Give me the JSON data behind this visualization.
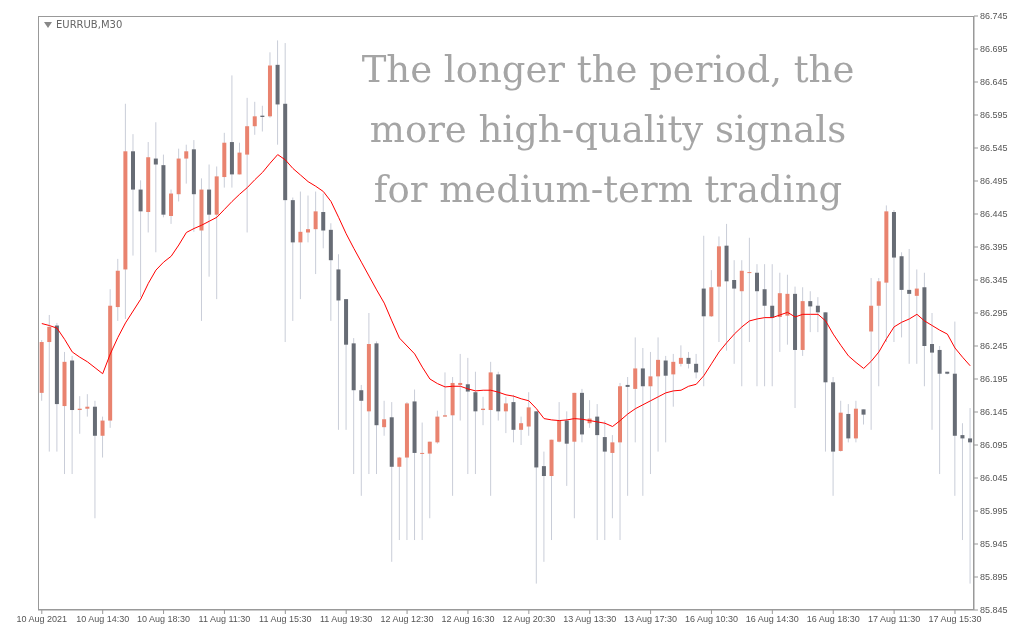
{
  "chart_data": {
    "type": "candlestick",
    "title": "EURRUB,M30",
    "annotations": [
      "The longer the period, the\nmore high-quality signals\nfor medium-term trading"
    ],
    "categories": [
      "10 Aug 2021",
      null,
      null,
      null,
      null,
      null,
      null,
      null,
      "10 Aug 14:30",
      null,
      null,
      null,
      null,
      null,
      null,
      null,
      "10 Aug 18:30",
      null,
      null,
      null,
      null,
      null,
      null,
      null,
      "11 Aug 11:30",
      null,
      null,
      null,
      null,
      null,
      null,
      null,
      "11 Aug 15:30",
      null,
      null,
      null,
      null,
      null,
      null,
      null,
      "11 Aug 19:30",
      null,
      null,
      null,
      null,
      null,
      null,
      null,
      "12 Aug 12:30",
      null,
      null,
      null,
      null,
      null,
      null,
      null,
      "12 Aug 16:30",
      null,
      null,
      null,
      null,
      null,
      null,
      null,
      "12 Aug 20:30",
      null,
      null,
      null,
      null,
      null,
      null,
      null,
      "13 Aug 13:30",
      null,
      null,
      null,
      null,
      null,
      null,
      null,
      "13 Aug 17:30",
      null,
      null,
      null,
      null,
      null,
      null,
      null,
      "16 Aug 10:30",
      null,
      null,
      null,
      null,
      null,
      null,
      null,
      "16 Aug 14:30",
      null,
      null,
      null,
      null,
      null,
      null,
      null,
      "16 Aug 18:30",
      null,
      null,
      null,
      null,
      null,
      null,
      null,
      "17 Aug 11:30",
      null,
      null,
      null,
      null,
      null,
      null,
      null,
      "17 Aug 15:30",
      null,
      null
    ],
    "ohlc": [
      [
        86.174,
        86.254,
        86.162,
        86.251
      ],
      [
        86.251,
        86.292,
        86.085,
        86.274
      ],
      [
        86.276,
        86.28,
        86.085,
        86.157
      ],
      [
        86.154,
        86.236,
        86.051,
        86.221
      ],
      [
        86.223,
        86.23,
        86.051,
        86.148
      ],
      [
        86.148,
        86.169,
        86.112,
        86.15
      ],
      [
        86.15,
        86.172,
        86.138,
        86.153
      ],
      [
        86.153,
        86.162,
        85.984,
        86.109
      ],
      [
        86.109,
        86.138,
        86.076,
        86.132
      ],
      [
        86.132,
        86.331,
        86.121,
        86.306
      ],
      [
        86.304,
        86.377,
        86.283,
        86.359
      ],
      [
        86.361,
        86.612,
        86.286,
        86.54
      ],
      [
        86.54,
        86.566,
        86.382,
        86.482
      ],
      [
        86.482,
        86.496,
        86.319,
        86.449
      ],
      [
        86.448,
        86.554,
        86.417,
        86.531
      ],
      [
        86.529,
        86.584,
        86.387,
        86.52
      ],
      [
        86.519,
        86.535,
        86.44,
        86.444
      ],
      [
        86.442,
        86.482,
        86.43,
        86.476
      ],
      [
        86.475,
        86.544,
        86.464,
        86.529
      ],
      [
        86.529,
        86.55,
        86.491,
        86.54
      ],
      [
        86.543,
        86.557,
        86.418,
        86.475
      ],
      [
        86.42,
        86.499,
        86.283,
        86.482
      ],
      [
        86.482,
        86.52,
        86.35,
        86.444
      ],
      [
        86.444,
        86.517,
        86.316,
        86.502
      ],
      [
        86.501,
        86.568,
        86.485,
        86.553
      ],
      [
        86.554,
        86.655,
        86.485,
        86.505
      ],
      [
        86.505,
        86.553,
        86.505,
        86.538
      ],
      [
        86.535,
        86.621,
        86.417,
        86.578
      ],
      [
        86.578,
        86.615,
        86.565,
        86.593
      ],
      [
        86.594,
        86.609,
        86.57,
        86.592
      ],
      [
        86.593,
        86.69,
        86.591,
        86.67
      ],
      [
        86.671,
        86.708,
        86.55,
        86.611
      ],
      [
        86.612,
        86.704,
        86.251,
        86.466
      ],
      [
        86.466,
        86.47,
        86.283,
        86.402
      ],
      [
        86.402,
        86.479,
        86.316,
        86.418
      ],
      [
        86.417,
        86.473,
        86.402,
        86.422
      ],
      [
        86.422,
        86.479,
        86.354,
        86.449
      ],
      [
        86.448,
        86.476,
        86.393,
        86.42
      ],
      [
        86.421,
        86.431,
        86.283,
        86.375
      ],
      [
        86.361,
        86.384,
        86.118,
        86.314
      ],
      [
        86.316,
        86.316,
        86.118,
        86.247
      ],
      [
        86.249,
        86.257,
        86.051,
        86.178
      ],
      [
        86.178,
        86.186,
        86.018,
        86.162
      ],
      [
        86.146,
        86.295,
        86.051,
        86.248
      ],
      [
        86.249,
        86.252,
        86.051,
        86.125
      ],
      [
        86.122,
        86.162,
        86.109,
        86.134
      ],
      [
        86.137,
        86.16,
        85.918,
        86.062
      ],
      [
        86.062,
        86.077,
        85.951,
        86.076
      ],
      [
        86.076,
        86.16,
        85.951,
        86.158
      ],
      [
        86.161,
        86.179,
        85.951,
        86.083
      ],
      [
        86.082,
        86.129,
        85.951,
        86.083
      ],
      [
        86.082,
        86.1,
        85.984,
        86.1
      ],
      [
        86.099,
        86.147,
        86.097,
        86.138
      ],
      [
        86.138,
        86.205,
        86.138,
        86.14
      ],
      [
        86.14,
        86.198,
        86.018,
        86.189
      ],
      [
        86.186,
        86.233,
        86.132,
        86.189
      ],
      [
        86.187,
        86.227,
        86.051,
        86.176
      ],
      [
        86.175,
        86.206,
        86.051,
        86.146
      ],
      [
        86.148,
        86.168,
        86.125,
        86.15
      ],
      [
        86.148,
        86.221,
        86.018,
        86.205
      ],
      [
        86.202,
        86.206,
        86.132,
        86.146
      ],
      [
        86.146,
        86.168,
        86.113,
        86.158
      ],
      [
        86.16,
        86.171,
        86.099,
        86.118
      ],
      [
        86.118,
        86.138,
        86.095,
        86.128
      ],
      [
        86.123,
        86.175,
        86.109,
        86.152
      ],
      [
        86.146,
        86.146,
        85.885,
        86.061
      ],
      [
        86.063,
        86.085,
        85.918,
        86.048
      ],
      [
        86.048,
        86.103,
        85.951,
        86.103
      ],
      [
        86.1,
        86.16,
        86.099,
        86.132
      ],
      [
        86.132,
        86.146,
        86.033,
        86.097
      ],
      [
        86.1,
        86.174,
        85.984,
        86.174
      ],
      [
        86.174,
        86.18,
        86.099,
        86.111
      ],
      [
        86.128,
        86.163,
        86.121,
        86.135
      ],
      [
        86.138,
        86.157,
        85.951,
        86.11
      ],
      [
        86.107,
        86.132,
        85.951,
        86.085
      ],
      [
        86.083,
        86.11,
        85.984,
        86.099
      ],
      [
        86.099,
        86.189,
        85.951,
        86.184
      ],
      [
        86.186,
        86.198,
        86.018,
        86.183
      ],
      [
        86.18,
        86.258,
        86.099,
        86.211
      ],
      [
        86.211,
        86.242,
        86.018,
        86.184
      ],
      [
        86.184,
        86.236,
        86.051,
        86.199
      ],
      [
        86.199,
        86.258,
        86.085,
        86.224
      ],
      [
        86.223,
        86.23,
        86.099,
        86.2
      ],
      [
        86.202,
        86.233,
        86.153,
        86.221
      ],
      [
        86.218,
        86.246,
        86.214,
        86.227
      ],
      [
        86.227,
        86.236,
        86.211,
        86.218
      ],
      [
        86.218,
        86.233,
        86.196,
        86.205
      ],
      [
        86.332,
        86.412,
        86.184,
        86.29
      ],
      [
        86.29,
        86.36,
        86.289,
        86.334
      ],
      [
        86.335,
        86.411,
        86.251,
        86.396
      ],
      [
        86.397,
        86.43,
        86.238,
        86.343
      ],
      [
        86.345,
        86.375,
        86.218,
        86.332
      ],
      [
        86.328,
        86.375,
        86.184,
        86.359
      ],
      [
        86.356,
        86.409,
        86.251,
        86.357
      ],
      [
        86.356,
        86.369,
        86.184,
        86.328
      ],
      [
        86.331,
        86.369,
        86.184,
        86.306
      ],
      [
        86.306,
        86.369,
        86.184,
        86.288
      ],
      [
        86.289,
        86.356,
        86.236,
        86.325
      ],
      [
        86.291,
        86.353,
        86.247,
        86.324
      ],
      [
        86.324,
        86.335,
        86.151,
        86.239
      ],
      [
        86.239,
        86.334,
        86.23,
        86.313
      ],
      [
        86.313,
        86.328,
        86.266,
        86.305
      ],
      [
        86.306,
        86.319,
        86.266,
        86.296
      ],
      [
        86.296,
        86.296,
        86.085,
        86.19
      ],
      [
        86.19,
        86.198,
        86.018,
        86.085
      ],
      [
        86.086,
        86.162,
        86.085,
        86.144
      ],
      [
        86.142,
        86.157,
        86.099,
        86.105
      ],
      [
        86.105,
        86.162,
        86.099,
        86.15
      ],
      [
        86.149,
        86.149,
        86.126,
        86.141
      ],
      [
        86.267,
        86.348,
        86.118,
        86.306
      ],
      [
        86.306,
        86.348,
        86.184,
        86.343
      ],
      [
        86.341,
        86.458,
        86.251,
        86.449
      ],
      [
        86.448,
        86.451,
        86.251,
        86.379
      ],
      [
        86.381,
        86.387,
        86.258,
        86.33
      ],
      [
        86.33,
        86.392,
        86.218,
        86.324
      ],
      [
        86.321,
        86.361,
        86.218,
        86.332
      ],
      [
        86.334,
        86.356,
        86.184,
        86.245
      ],
      [
        86.248,
        86.295,
        86.118,
        86.235
      ],
      [
        86.239,
        86.245,
        86.051,
        86.203
      ],
      [
        86.206,
        86.206,
        86.202,
        86.203
      ],
      [
        86.203,
        86.282,
        86.018,
        86.109
      ],
      [
        86.11,
        86.128,
        85.951,
        86.105
      ],
      [
        86.105,
        86.151,
        85.885,
        86.099
      ]
    ],
    "colors": [
      "#e9836f",
      "#e9836f",
      "#676c75",
      "#e9836f",
      "#676c75",
      "#e9836f",
      "#e9836f",
      "#676c75",
      "#e9836f",
      "#e9836f",
      "#e9836f",
      "#e9836f",
      "#676c75",
      "#676c75",
      "#e9836f",
      "#676c75",
      "#676c75",
      "#e9836f",
      "#e9836f",
      "#e9836f",
      "#676c75",
      "#e9836f",
      "#676c75",
      "#e9836f",
      "#e9836f",
      "#676c75",
      "#e9836f",
      "#e9836f",
      "#e9836f",
      "#676c75",
      "#e9836f",
      "#676c75",
      "#676c75",
      "#676c75",
      "#e9836f",
      "#e9836f",
      "#e9836f",
      "#676c75",
      "#676c75",
      "#676c75",
      "#676c75",
      "#676c75",
      "#676c75",
      "#e9836f",
      "#676c75",
      "#e9836f",
      "#676c75",
      "#e9836f",
      "#e9836f",
      "#676c75",
      "#e9836f",
      "#e9836f",
      "#e9836f",
      "#e9836f",
      "#e9836f",
      "#e9836f",
      "#676c75",
      "#676c75",
      "#e9836f",
      "#e9836f",
      "#676c75",
      "#e9836f",
      "#676c75",
      "#e9836f",
      "#e9836f",
      "#676c75",
      "#676c75",
      "#e9836f",
      "#e9836f",
      "#676c75",
      "#e9836f",
      "#676c75",
      "#e9836f",
      "#676c75",
      "#676c75",
      "#e9836f",
      "#e9836f",
      "#676c75",
      "#e9836f",
      "#676c75",
      "#e9836f",
      "#e9836f",
      "#676c75",
      "#e9836f",
      "#e9836f",
      "#676c75",
      "#676c75",
      "#676c75",
      "#e9836f",
      "#e9836f",
      "#676c75",
      "#676c75",
      "#e9836f",
      "#e9836f",
      "#676c75",
      "#676c75",
      "#676c75",
      "#e9836f",
      "#e9836f",
      "#676c75",
      "#e9836f",
      "#676c75",
      "#676c75",
      "#676c75",
      "#676c75",
      "#e9836f",
      "#676c75",
      "#e9836f",
      "#676c75",
      "#e9836f",
      "#e9836f",
      "#e9836f",
      "#676c75",
      "#676c75",
      "#676c75",
      "#e9836f",
      "#676c75",
      "#676c75",
      "#676c75",
      "#676c75",
      "#676c75",
      "#676c75",
      "#676c75"
    ],
    "series": [
      {
        "type": "line",
        "color": "#ff0000",
        "values": [
          86.279,
          86.276,
          86.272,
          86.255,
          86.236,
          86.228,
          86.221,
          86.212,
          86.203,
          86.233,
          86.258,
          86.28,
          86.298,
          86.316,
          86.34,
          86.36,
          86.372,
          86.381,
          86.398,
          86.417,
          86.423,
          86.428,
          86.434,
          86.44,
          86.452,
          86.464,
          86.475,
          86.485,
          86.497,
          86.508,
          86.522,
          86.535,
          86.527,
          86.514,
          86.504,
          86.494,
          86.487,
          86.479,
          86.464,
          86.44,
          86.415,
          86.393,
          86.372,
          86.351,
          86.33,
          86.31,
          86.283,
          86.257,
          86.245,
          86.233,
          86.213,
          86.195,
          86.188,
          86.183,
          86.184,
          86.184,
          86.18,
          86.177,
          86.178,
          86.178,
          86.175,
          86.171,
          86.169,
          86.165,
          86.162,
          86.15,
          86.135,
          86.133,
          86.132,
          86.133,
          86.135,
          86.134,
          86.132,
          86.13,
          86.128,
          86.123,
          86.132,
          86.142,
          86.15,
          86.156,
          86.162,
          86.168,
          86.174,
          86.177,
          86.178,
          86.184,
          86.187,
          86.2,
          86.218,
          86.236,
          86.25,
          86.263,
          86.274,
          86.283,
          86.286,
          86.288,
          86.288,
          86.292,
          86.296,
          86.289,
          86.293,
          86.293,
          86.293,
          86.283,
          86.263,
          86.246,
          86.23,
          86.22,
          86.211,
          86.222,
          86.236,
          86.256,
          86.274,
          86.281,
          86.286,
          86.293,
          86.283,
          86.276,
          86.269,
          86.263,
          86.242,
          86.228,
          86.215
        ]
      }
    ],
    "ylim": [
      85.845,
      86.745
    ],
    "yticks": [
      85.845,
      85.895,
      85.945,
      85.995,
      86.045,
      86.095,
      86.145,
      86.195,
      86.245,
      86.295,
      86.345,
      86.395,
      86.445,
      86.495,
      86.545,
      86.595,
      86.645,
      86.695,
      86.745
    ],
    "grid": false
  }
}
